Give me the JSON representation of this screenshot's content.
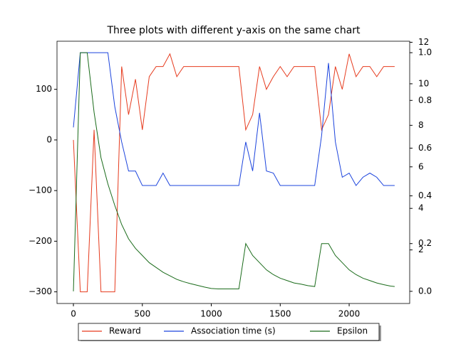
{
  "chart_data": {
    "type": "line",
    "title": "Three plots with different y-axis on the same chart",
    "x": [
      0,
      50,
      100,
      150,
      200,
      250,
      300,
      350,
      400,
      450,
      500,
      550,
      600,
      650,
      700,
      750,
      800,
      850,
      900,
      950,
      1000,
      1050,
      1100,
      1150,
      1200,
      1250,
      1300,
      1350,
      1400,
      1450,
      1500,
      1550,
      1600,
      1650,
      1700,
      1750,
      1800,
      1850,
      1900,
      1950,
      2000,
      2050,
      2100,
      2150,
      2200,
      2250,
      2300,
      2330
    ],
    "xlim": [
      -119,
      2439
    ],
    "xticks": [
      0,
      500,
      1000,
      1500,
      2000
    ],
    "ylim": [
      -323,
      195
    ],
    "yticks": [
      {
        "value": -300,
        "label": "−300"
      },
      {
        "value": -200,
        "label": "−200"
      },
      {
        "value": -100,
        "label": "−100"
      },
      0,
      100
    ],
    "y2lim": [
      -0.58,
      12.05
    ],
    "y2ticks": [
      2,
      4,
      6,
      8,
      10,
      12
    ],
    "y3lim": [
      -0.051,
      1.048
    ],
    "y3ticks": [
      {
        "value": 0,
        "label": "0.0"
      },
      0.2,
      0.4,
      0.6,
      0.8,
      {
        "value": 1,
        "label": "1.0"
      }
    ],
    "legend": "lower center",
    "series": [
      {
        "name": "Reward",
        "color": "#e63b1e",
        "axis": "y",
        "values": [
          0,
          -300,
          -300,
          20,
          -300,
          -300,
          -300,
          145,
          50,
          120,
          20,
          125,
          145,
          145,
          170,
          125,
          145,
          145,
          145,
          145,
          145,
          145,
          145,
          145,
          145,
          20,
          50,
          145,
          100,
          125,
          145,
          125,
          145,
          145,
          145,
          145,
          20,
          50,
          145,
          100,
          170,
          125,
          145,
          145,
          125,
          145,
          145,
          145
        ]
      },
      {
        "name": "Association time (s)",
        "color": "#1c44dd",
        "axis": "y2",
        "values": [
          7.9,
          11.5,
          11.5,
          11.5,
          11.5,
          11.5,
          8.9,
          7.2,
          5.8,
          5.8,
          5.1,
          5.1,
          5.1,
          5.7,
          5.1,
          5.1,
          5.1,
          5.1,
          5.1,
          5.1,
          5.1,
          5.1,
          5.1,
          5.1,
          5.1,
          7.2,
          5.8,
          8.6,
          5.8,
          5.7,
          5.1,
          5.1,
          5.1,
          5.1,
          5.1,
          5.1,
          7.5,
          11.0,
          7.2,
          5.5,
          5.7,
          5.1,
          5.5,
          5.7,
          5.5,
          5.1,
          5.1,
          5.1
        ]
      },
      {
        "name": "Epsilon",
        "color": "#1a6b1a",
        "axis": "y3",
        "values": [
          0,
          1.0,
          1.0,
          0.75,
          0.56,
          0.45,
          0.36,
          0.28,
          0.22,
          0.18,
          0.15,
          0.12,
          0.1,
          0.08,
          0.065,
          0.05,
          0.04,
          0.032,
          0.025,
          0.018,
          0.012,
          0.01,
          0.01,
          0.01,
          0.01,
          0.2,
          0.15,
          0.12,
          0.09,
          0.07,
          0.055,
          0.045,
          0.035,
          0.03,
          0.024,
          0.02,
          0.2,
          0.2,
          0.15,
          0.12,
          0.09,
          0.07,
          0.055,
          0.045,
          0.035,
          0.028,
          0.022,
          0.02
        ]
      }
    ]
  }
}
